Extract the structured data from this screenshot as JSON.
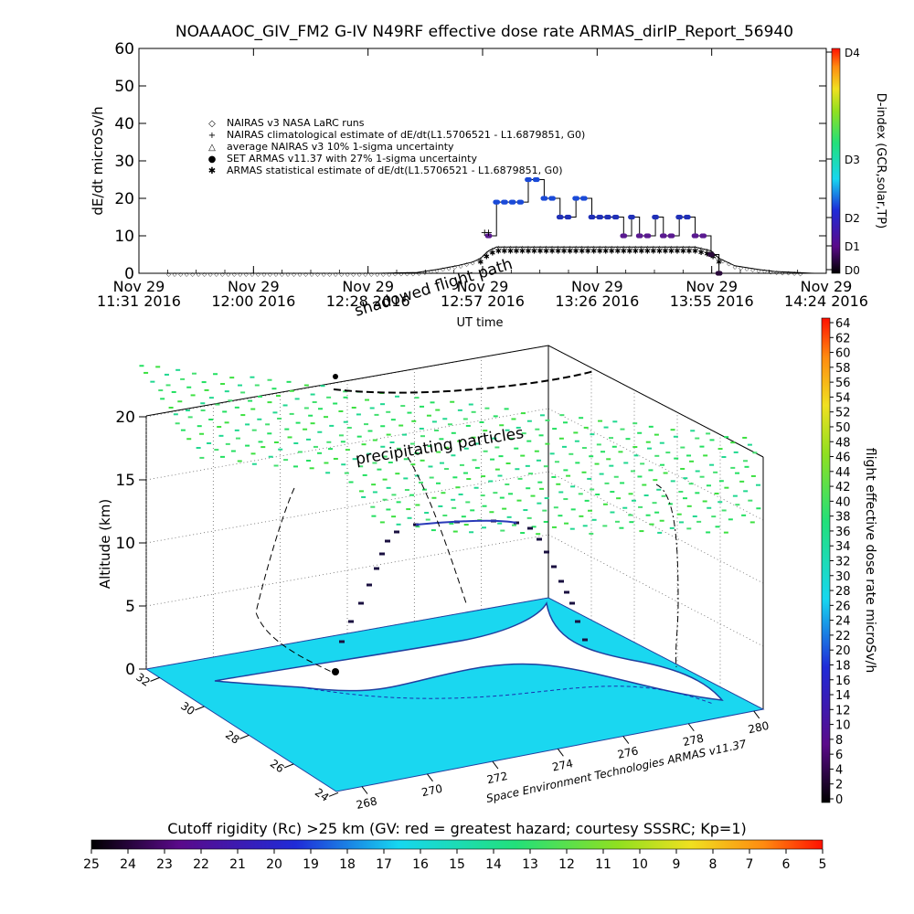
{
  "top_title": "NOAAAOC_GIV_FM2 G-IV    N49RF   effective dose rate ARMAS_dirIP_Report_56940",
  "bottom_credit": "Space Environment Technologies ARMAS v11.37",
  "colors": {
    "nairas": "#000000",
    "armas_set": "#1030c0",
    "ocean": "#1ad7f0",
    "land": "#ffffff",
    "flight_shadow": "#000000"
  },
  "chart_data": [
    {
      "type": "line",
      "id": "dose_rate_timeseries",
      "ylabel": "dE/dt microSv/h",
      "xlabel": "UT time",
      "ylim": [
        0,
        60
      ],
      "yticks": [
        0,
        10,
        20,
        30,
        40,
        50,
        60
      ],
      "xticks": [
        {
          "line1": "Nov 29",
          "line2": "11:31 2016"
        },
        {
          "line1": "Nov 29",
          "line2": "12:00 2016"
        },
        {
          "line1": "Nov 29",
          "line2": "12:28 2016"
        },
        {
          "line1": "Nov 29",
          "line2": "12:57 2016"
        },
        {
          "line1": "Nov 29",
          "line2": "13:26 2016"
        },
        {
          "line1": "Nov 29",
          "line2": "13:55 2016"
        },
        {
          "line1": "Nov 29",
          "line2": "14:24 2016"
        }
      ],
      "xlim_minutes": [
        0,
        173
      ],
      "legend": [
        {
          "symbol": "◇",
          "label": "NAIRAS v3 NASA LaRC runs"
        },
        {
          "symbol": "+",
          "label": "NAIRAS climatological estimate of dE/dt(L1.5706521 - L1.6879851, G0)"
        },
        {
          "symbol": "△",
          "label": "average NAIRAS v3 10% 1-sigma uncertainty"
        },
        {
          "symbol": "●",
          "label": "SET ARMAS v11.37 with 27% 1-sigma uncertainty"
        },
        {
          "symbol": "✱",
          "label": "ARMAS statistical estimate of dE/dt(L1.5706521 - L1.6879851, G0)"
        }
      ],
      "legend_placement": "upper-left",
      "series": [
        {
          "name": "SET ARMAS v11.37 with 27% 1-sigma uncertainty",
          "x_minutes": [
            88,
            90,
            92,
            94,
            96,
            98,
            100,
            102,
            104,
            106,
            108,
            110,
            112,
            114,
            116,
            118,
            120,
            122,
            124,
            126,
            128,
            130,
            132,
            134,
            136,
            138,
            140,
            142,
            144,
            146
          ],
          "values": [
            10,
            19,
            19,
            19,
            19,
            25,
            25,
            20,
            20,
            15,
            15,
            20,
            20,
            15,
            15,
            15,
            15,
            10,
            15,
            10,
            10,
            15,
            10,
            10,
            15,
            15,
            10,
            10,
            5,
            0
          ]
        },
        {
          "name": "NAIRAS v3 NASA LaRC runs",
          "x_minutes": [
            0,
            20,
            40,
            60,
            70,
            75,
            80,
            84,
            86,
            88,
            90,
            100,
            110,
            120,
            130,
            140,
            144,
            146,
            150,
            156,
            160,
            170
          ],
          "values": [
            0,
            0,
            0,
            0,
            0.2,
            1,
            2,
            3,
            4,
            6,
            7,
            7,
            7,
            7,
            7,
            7,
            6,
            4,
            2,
            1,
            0.5,
            0
          ]
        },
        {
          "name": "ARMAS statistical estimate of dE/dt(L1.5706521 - L1.6879851, G0)",
          "x_minutes": [
            86,
            88,
            90,
            100,
            110,
            120,
            130,
            140,
            144,
            146
          ],
          "values": [
            3,
            5,
            6,
            6,
            6,
            6,
            6,
            6,
            5,
            3
          ]
        }
      ],
      "right_colorbar": {
        "label": "D-index (GCR,solar,TP)",
        "ticks": [
          "D0",
          "D1",
          "D2",
          "D3",
          "D4"
        ]
      },
      "grid": false
    },
    {
      "type": "scatter3d",
      "id": "altitude_view",
      "zlabel": "Altitude (km)",
      "zticks": [
        0,
        5,
        10,
        15,
        20
      ],
      "lat_ticks": [
        24,
        26,
        28,
        30,
        32
      ],
      "lon_ticks": [
        268,
        270,
        272,
        274,
        276,
        278,
        280
      ],
      "annotations": [
        "shadowed flight path",
        "precipitating particles"
      ],
      "right_colorbar": {
        "label": "flight effective dose rate microSv/h",
        "ticks": [
          0,
          2,
          4,
          6,
          8,
          10,
          12,
          14,
          16,
          18,
          20,
          22,
          24,
          26,
          28,
          30,
          32,
          34,
          36,
          38,
          40,
          42,
          44,
          46,
          48,
          50,
          52,
          54,
          56,
          58,
          60,
          62,
          64
        ]
      },
      "grid": true
    },
    {
      "type": "colorbar",
      "id": "cutoff_rigidity_bar",
      "title": "Cutoff rigidity (Rc) >25 km (GV: red = greatest hazard; courtesy SSSRC; Kp=1)",
      "ticks": [
        25,
        24,
        23,
        22,
        21,
        20,
        19,
        18,
        17,
        16,
        15,
        14,
        13,
        12,
        11,
        10,
        9,
        8,
        7,
        6,
        5
      ]
    }
  ]
}
